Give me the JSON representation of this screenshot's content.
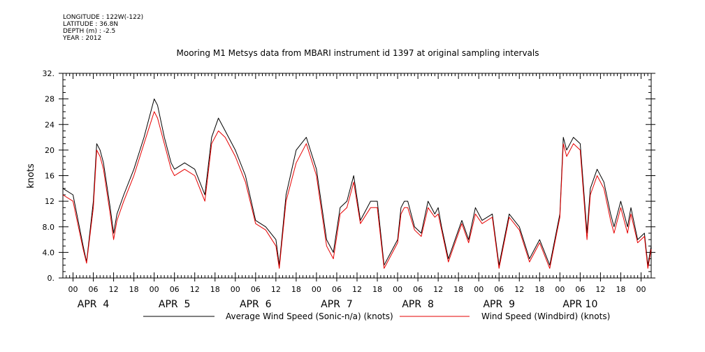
{
  "header": {
    "lines": [
      "LONGITUDE : 122W(-122)",
      "LATITUDE : 36.8N",
      "DEPTH (m) : -2.5",
      "YEAR : 2012"
    ]
  },
  "chart_data": {
    "type": "line",
    "title": "Mooring M1 Metsys data from MBARI instrument id 1397 at original sampling intervals",
    "ylabel": "knots",
    "xlabel": "",
    "ylim": [
      0,
      32
    ],
    "yticks": [
      "0.",
      "4.0",
      "8.0",
      "12",
      "16",
      "20",
      "24",
      "28",
      "32."
    ],
    "xlim_hours": [
      -3,
      171
    ],
    "xtick_hours": [
      "00",
      "06",
      "12",
      "18"
    ],
    "day_labels": [
      "APR  4",
      "APR  5",
      "APR  6",
      "APR  7",
      "APR  8",
      "APR  9",
      "APR 10"
    ],
    "grid": false,
    "legend_position": "bottom",
    "series": [
      {
        "name": "Average Wind Speed (Sonic-n/a) (knots)",
        "color": "#000000",
        "x": [
          -3,
          0,
          3,
          4,
          6,
          7,
          8,
          9,
          11,
          12,
          13,
          15,
          18,
          21,
          24,
          25,
          27,
          29,
          30,
          33,
          36,
          39,
          41,
          43,
          45,
          48,
          51,
          54,
          57,
          60,
          61,
          63,
          66,
          69,
          72,
          75,
          77,
          79,
          81,
          83,
          85,
          88,
          90,
          92,
          94,
          96,
          97,
          98,
          99,
          101,
          103,
          105,
          107,
          108,
          109,
          111,
          113,
          115,
          117,
          119,
          121,
          124,
          126,
          129,
          132,
          135,
          138,
          141,
          144,
          145,
          146,
          147,
          148,
          150,
          152,
          153,
          155,
          157,
          159,
          160,
          162,
          164,
          165,
          167,
          169,
          170,
          171
        ],
        "y": [
          14,
          13,
          5,
          2.5,
          12,
          21,
          20,
          18,
          11,
          7,
          10,
          13,
          17,
          22,
          28,
          27,
          22,
          18,
          17,
          18,
          17,
          13,
          22,
          25,
          23,
          20,
          16,
          9,
          8,
          6,
          2,
          13,
          20,
          22,
          17,
          6,
          4,
          11,
          12,
          16,
          9,
          12,
          12,
          2,
          4,
          6,
          11,
          12,
          12,
          8,
          7,
          12,
          10,
          11,
          8,
          3,
          6,
          9,
          6,
          11,
          9,
          10,
          2,
          10,
          8,
          3,
          6,
          2,
          10,
          22,
          20,
          21,
          22,
          21,
          7,
          14,
          17,
          15,
          10,
          8,
          12,
          8,
          11,
          6,
          7,
          2,
          5
        ]
      },
      {
        "name": "Wind Speed (Windbird) (knots)",
        "color": "#e60000",
        "x": [
          -3,
          0,
          3,
          4,
          6,
          7,
          8,
          9,
          11,
          12,
          13,
          15,
          18,
          21,
          24,
          25,
          27,
          29,
          30,
          33,
          36,
          39,
          41,
          43,
          45,
          48,
          51,
          54,
          57,
          60,
          61,
          63,
          66,
          69,
          72,
          75,
          77,
          79,
          81,
          83,
          85,
          88,
          90,
          92,
          94,
          96,
          97,
          98,
          99,
          101,
          103,
          105,
          107,
          108,
          109,
          111,
          113,
          115,
          117,
          119,
          121,
          124,
          126,
          129,
          132,
          135,
          138,
          141,
          144,
          145,
          146,
          147,
          148,
          150,
          152,
          153,
          155,
          157,
          159,
          160,
          162,
          164,
          165,
          167,
          169,
          170,
          171
        ],
        "y": [
          13,
          12,
          4.5,
          2.3,
          11,
          20,
          19,
          17,
          10,
          6,
          9,
          12,
          16,
          21,
          26,
          25,
          21,
          17,
          16,
          17,
          16,
          12,
          21,
          23,
          22,
          19,
          15,
          8.5,
          7.5,
          5,
          1.5,
          12,
          18,
          21,
          16,
          5,
          3,
          10,
          11,
          15,
          8.5,
          11,
          11,
          1.5,
          3.5,
          5.5,
          10,
          11,
          11,
          7.5,
          6.5,
          11,
          9.5,
          10,
          7.5,
          2.5,
          5.5,
          8.5,
          5.5,
          10,
          8.5,
          9.5,
          1.5,
          9.5,
          7.5,
          2.5,
          5.5,
          1.5,
          9.5,
          21,
          19,
          20,
          21,
          20,
          6,
          13,
          16,
          14,
          9,
          7,
          11,
          7,
          10,
          5.5,
          6.5,
          1.5,
          4.5
        ]
      }
    ]
  }
}
